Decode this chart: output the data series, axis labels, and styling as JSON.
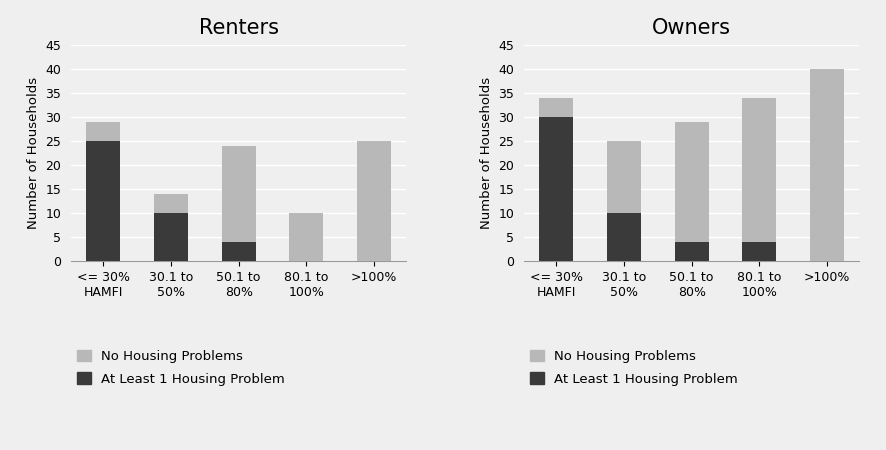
{
  "renters": {
    "title": "Renters",
    "categories": [
      "<= 30%\nHAMFI",
      "30.1 to\n50%",
      "50.1 to\n80%",
      "80.1 to\n100%",
      ">100%"
    ],
    "no_housing_problems": [
      4,
      4,
      20,
      10,
      25
    ],
    "at_least_1_problem": [
      25,
      10,
      4,
      0,
      0
    ]
  },
  "owners": {
    "title": "Owners",
    "categories": [
      "<= 30%\nHAMFI",
      "30.1 to\n50%",
      "50.1 to\n80%",
      "80.1 to\n100%",
      ">100%"
    ],
    "no_housing_problems": [
      4,
      15,
      25,
      30,
      40
    ],
    "at_least_1_problem": [
      30,
      10,
      4,
      4,
      0
    ]
  },
  "ylim": [
    0,
    45
  ],
  "yticks": [
    0,
    5,
    10,
    15,
    20,
    25,
    30,
    35,
    40,
    45
  ],
  "ylabel": "Number of Households",
  "color_no_problems": "#b8b8b8",
  "color_at_least_1": "#3a3a3a",
  "background_color": "#efefef",
  "plot_bg_color": "#efefef",
  "legend_labels": [
    "No Housing Problems",
    "At Least 1 Housing Problem"
  ],
  "bar_width": 0.5,
  "title_fontsize": 15,
  "label_fontsize": 9.5,
  "tick_fontsize": 9,
  "legend_fontsize": 9.5
}
